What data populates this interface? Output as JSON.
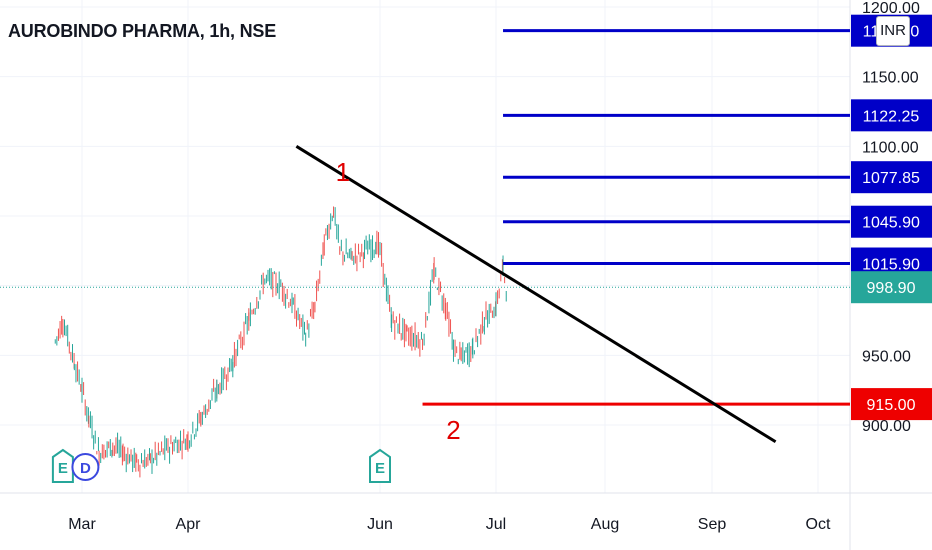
{
  "header": {
    "symbol_title": "AUROBINDO PHARMA, 1h, NSE",
    "currency": "INR"
  },
  "chart_data": {
    "type": "line",
    "title": "AUROBINDO PHARMA, 1h, NSE",
    "xlabel": "",
    "ylabel": "",
    "x_ticks": [
      "Mar",
      "Apr",
      "Jun",
      "Jul",
      "Aug",
      "Sep",
      "Oct"
    ],
    "y_ticks": [
      "1200.00",
      "1150.00",
      "1100.00",
      "950.00",
      "900.00"
    ],
    "ylim": [
      870,
      1205
    ],
    "grid": true,
    "last_price": {
      "value": "998.90",
      "color": "#26a69a"
    },
    "price_series": {
      "name": "",
      "color": "#26a69a",
      "down_color": "#ef5350",
      "points": [
        [
          "Feb 22",
          960
        ],
        [
          "Feb 24",
          975
        ],
        [
          "Feb 27",
          945
        ],
        [
          "Mar 1",
          925
        ],
        [
          "Mar 3",
          905
        ],
        [
          "Mar 6",
          880
        ],
        [
          "Mar 10",
          885
        ],
        [
          "Mar 13",
          880
        ],
        [
          "Mar 17",
          873
        ],
        [
          "Mar 21",
          875
        ],
        [
          "Mar 27",
          885
        ],
        [
          "Apr 1",
          890
        ],
        [
          "Apr 5",
          905
        ],
        [
          "Apr 10",
          925
        ],
        [
          "Apr 15",
          945
        ],
        [
          "Apr 20",
          975
        ],
        [
          "Apr 25",
          1005
        ],
        [
          "Apr 30",
          1000
        ],
        [
          "May 4",
          985
        ],
        [
          "May 8",
          965
        ],
        [
          "May 11",
          985
        ],
        [
          "May 14",
          1030
        ],
        [
          "May 17",
          1055
        ],
        [
          "May 19",
          1025
        ],
        [
          "May 23",
          1020
        ],
        [
          "May 27",
          1025
        ],
        [
          "May 31",
          1030
        ],
        [
          "Jun 1",
          1025
        ],
        [
          "Jun 4",
          975
        ],
        [
          "Jun 8",
          965
        ],
        [
          "Jun 12",
          960
        ],
        [
          "Jun 15",
          1010
        ],
        [
          "Jun 18",
          985
        ],
        [
          "Jun 20",
          955
        ],
        [
          "Jun 22",
          948
        ],
        [
          "Jun 25",
          955
        ],
        [
          "Jun 28",
          975
        ],
        [
          "Jul 1",
          985
        ],
        [
          "Jul 3",
          1013
        ],
        [
          "Jul 4",
          998.9
        ]
      ]
    },
    "trendline": {
      "color": "#000000",
      "start": [
        "May 5",
        1100
      ],
      "end": [
        "Sep 19",
        888
      ]
    },
    "levels": [
      {
        "value": "1183.00",
        "color": "#0000c8",
        "label_text": "1183.00"
      },
      {
        "value": "1122.25",
        "color": "#0000c8",
        "label_text": "1122.25"
      },
      {
        "value": "1077.85",
        "color": "#0000c8",
        "label_text": "1077.85"
      },
      {
        "value": "1045.90",
        "color": "#0000c8",
        "label_text": "1045.90"
      },
      {
        "value": "1015.90",
        "color": "#0000c8",
        "label_text": "1015.90"
      },
      {
        "value": "915.00",
        "color": "#ee0000",
        "label_text": "915.00"
      }
    ],
    "level_start": "Jul 3",
    "red_level_start": "Jun 12",
    "annotations": [
      {
        "text": "1",
        "at": [
          "May 20",
          1075
        ],
        "color": "#e00000"
      },
      {
        "text": "2",
        "at": [
          "Jun 20",
          890
        ],
        "color": "#e00000"
      }
    ],
    "event_badges": [
      {
        "letter": "E",
        "type": "earnings",
        "at": "Feb 24",
        "color": "#26a69a"
      },
      {
        "letter": "D",
        "type": "dividend",
        "at": "Mar 2",
        "color": "#3b49df"
      },
      {
        "letter": "E",
        "type": "earnings",
        "at": "Jun 1",
        "color": "#26a69a"
      }
    ]
  }
}
